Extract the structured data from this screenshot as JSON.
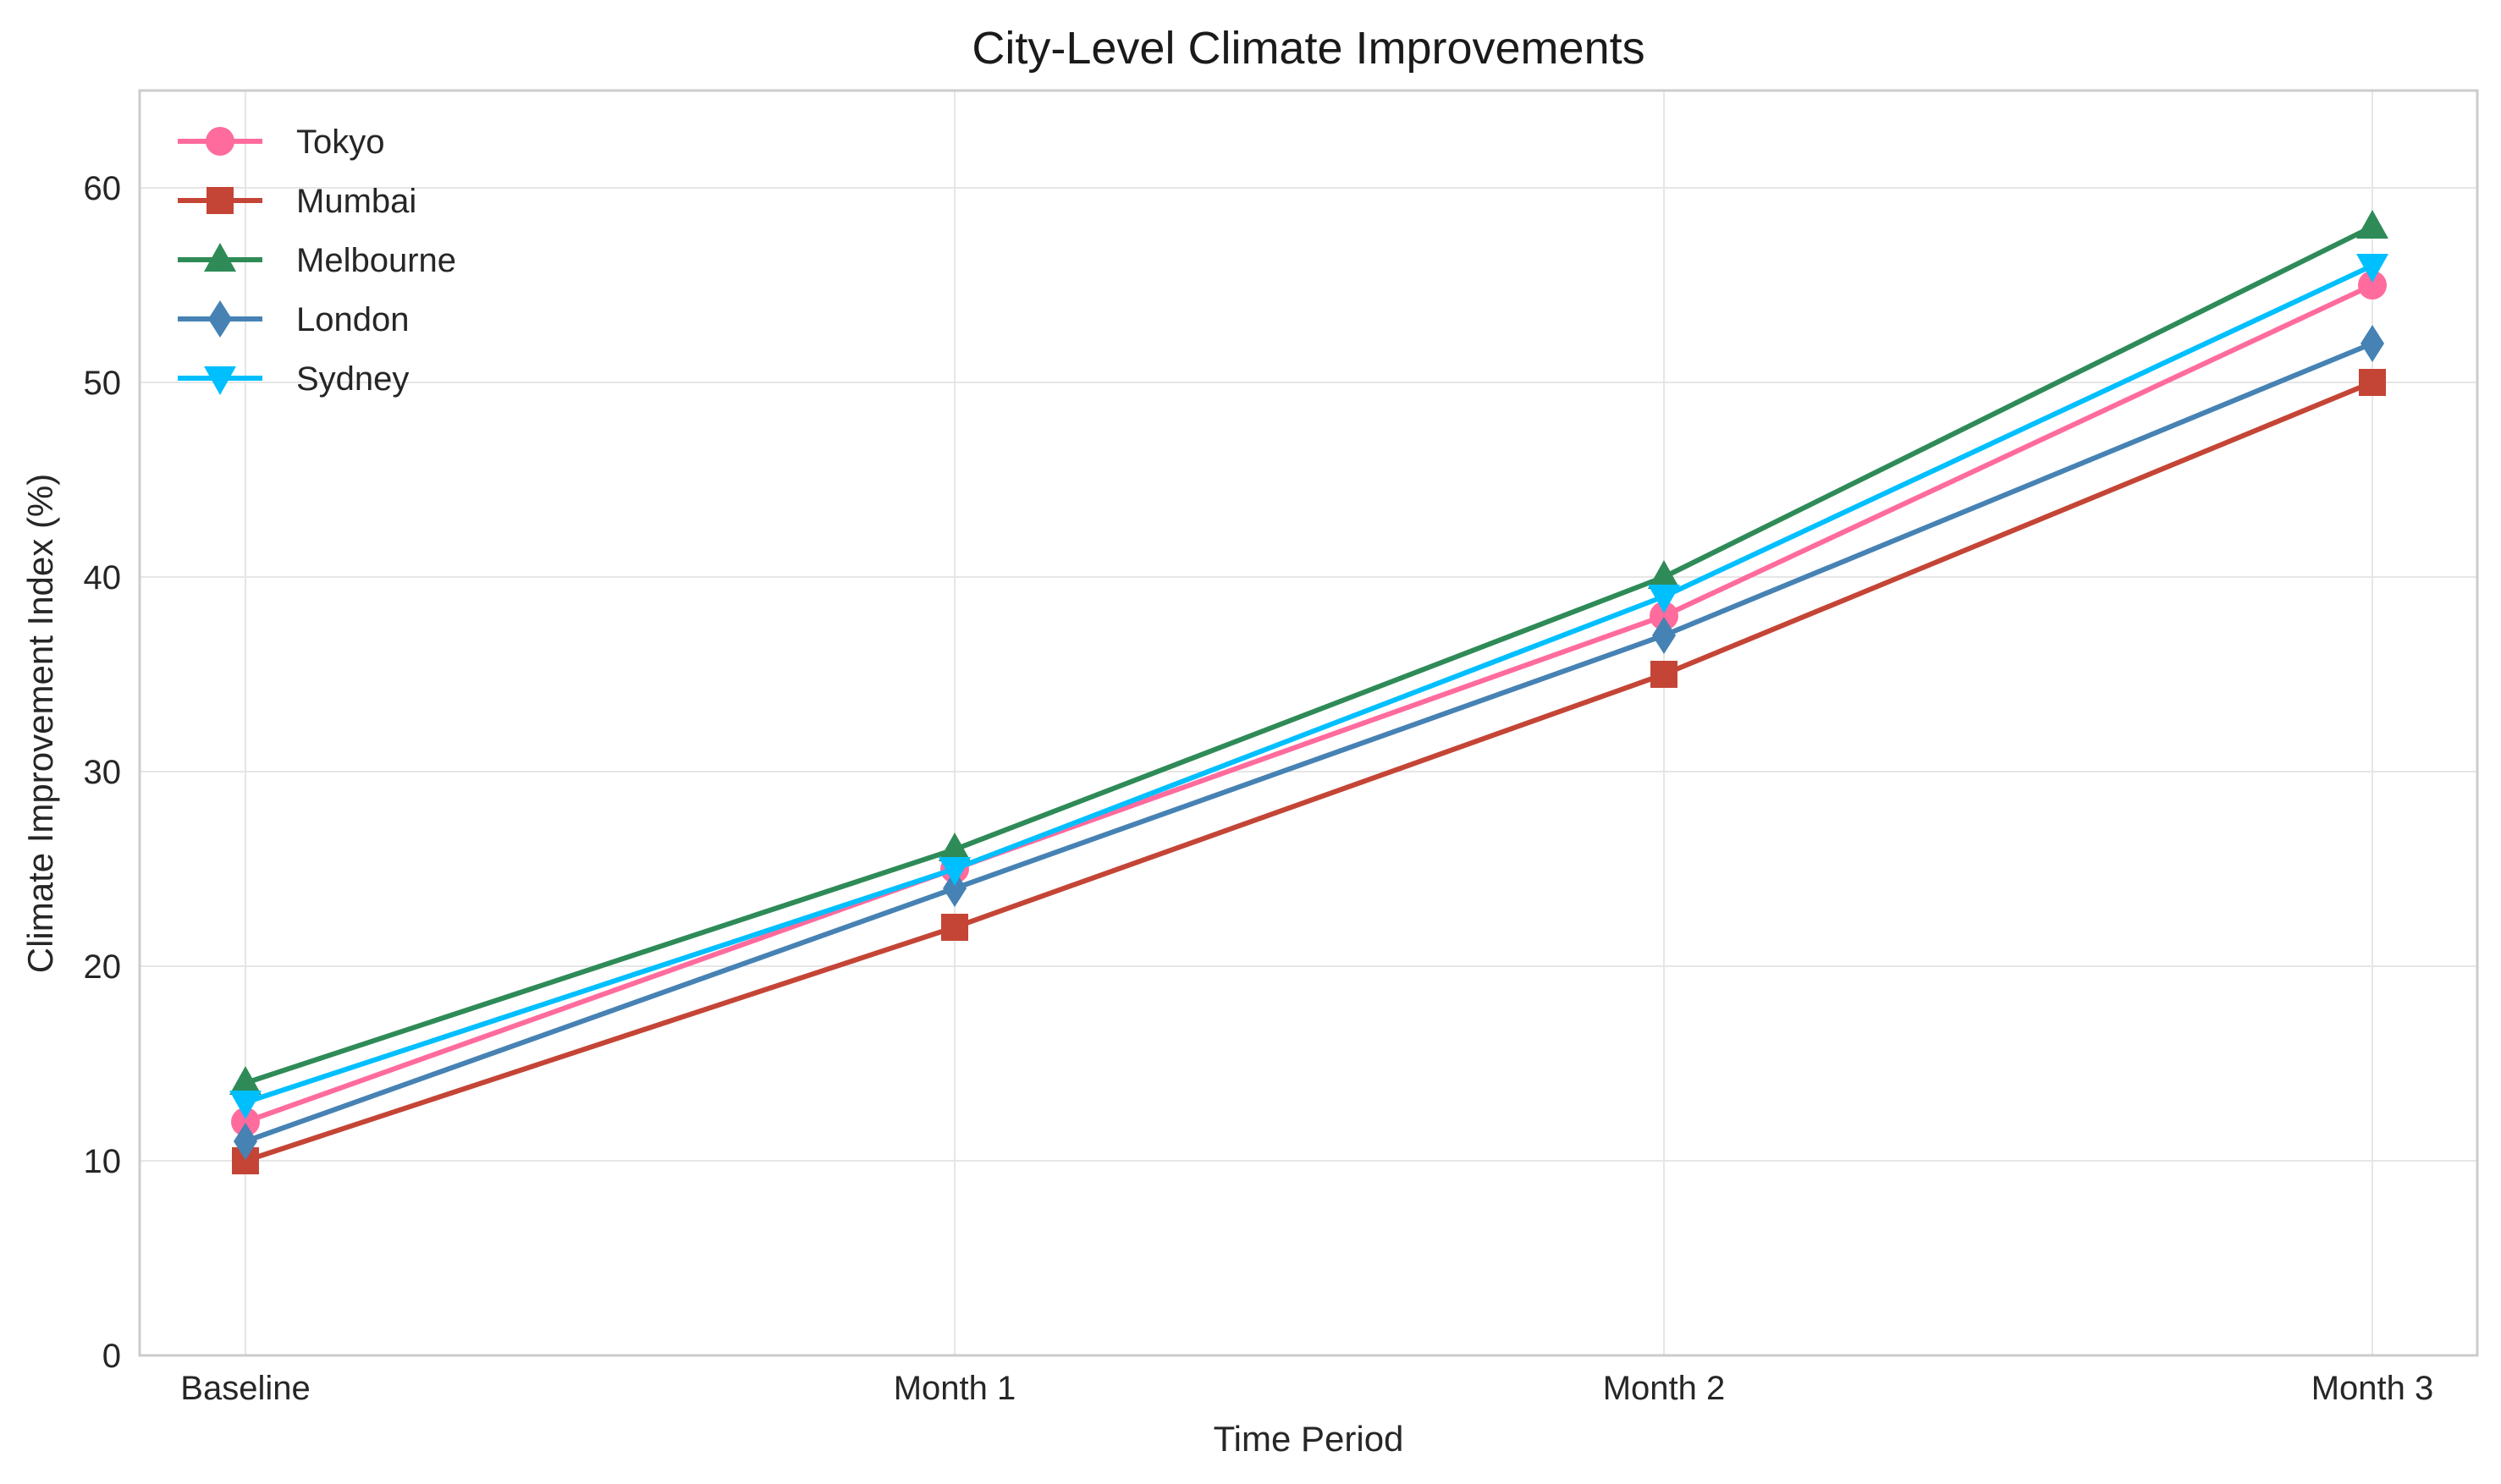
{
  "chart_data": {
    "type": "line",
    "title": "City-Level Climate Improvements",
    "xlabel": "Time Period",
    "ylabel": "Climate Improvement Index (%)",
    "categories": [
      "Baseline",
      "Month 1",
      "Month 2",
      "Month 3"
    ],
    "ylim": [
      0,
      65
    ],
    "yticks": [
      0,
      10,
      20,
      30,
      40,
      50,
      60
    ],
    "grid": true,
    "legend_position": "top-left",
    "series": [
      {
        "name": "Tokyo",
        "values": [
          12,
          25,
          38,
          55
        ],
        "color": "#ff6b9d",
        "marker": "circle"
      },
      {
        "name": "Mumbai",
        "values": [
          10,
          22,
          35,
          50
        ],
        "color": "#c44536",
        "marker": "square"
      },
      {
        "name": "Melbourne",
        "values": [
          14,
          26,
          40,
          58
        ],
        "color": "#2e8b57",
        "marker": "triangle-up"
      },
      {
        "name": "London",
        "values": [
          11,
          24,
          37,
          52
        ],
        "color": "#4682b4",
        "marker": "diamond"
      },
      {
        "name": "Sydney",
        "values": [
          13,
          25,
          39,
          56
        ],
        "color": "#00bfff",
        "marker": "triangle-down"
      }
    ]
  }
}
